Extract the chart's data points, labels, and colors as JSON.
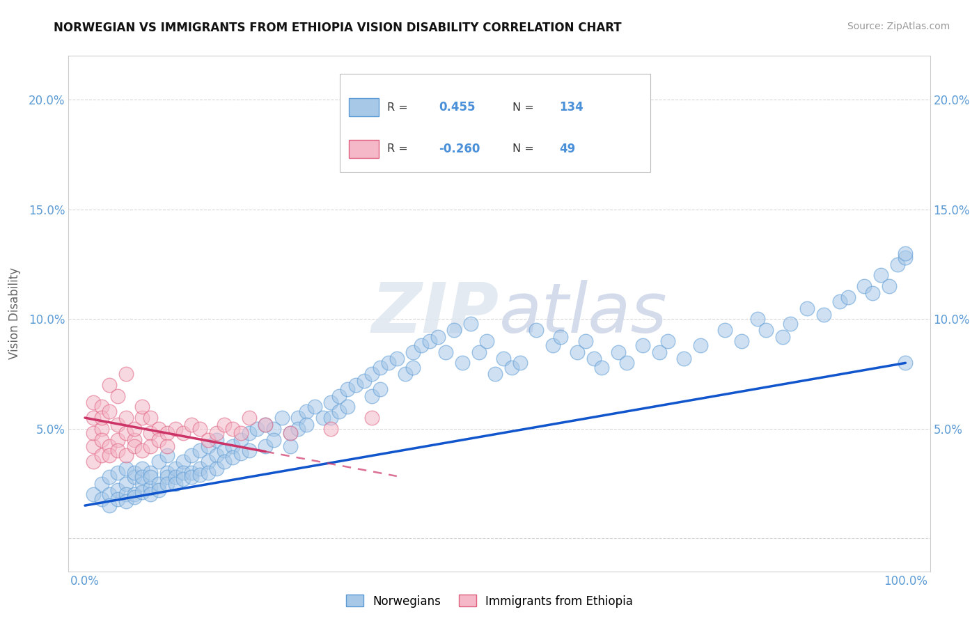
{
  "title": "NORWEGIAN VS IMMIGRANTS FROM ETHIOPIA VISION DISABILITY CORRELATION CHART",
  "source": "Source: ZipAtlas.com",
  "ylabel": "Vision Disability",
  "norwegian_R": 0.455,
  "norwegian_N": 134,
  "ethiopia_R": -0.26,
  "ethiopia_N": 49,
  "blue_scatter_face": "#a8c8e8",
  "blue_scatter_edge": "#5b9bd5",
  "pink_scatter_face": "#f4b8c8",
  "pink_scatter_edge": "#e06080",
  "blue_line_color": "#1155cc",
  "pink_line_color": "#cc3366",
  "background_color": "#ffffff",
  "grid_color": "#cccccc",
  "watermark": "ZIPatlas",
  "tick_color": "#5b9bd5",
  "norway_x": [
    1,
    2,
    2,
    3,
    3,
    3,
    4,
    4,
    4,
    5,
    5,
    5,
    5,
    6,
    6,
    6,
    6,
    7,
    7,
    7,
    7,
    8,
    8,
    8,
    8,
    9,
    9,
    9,
    10,
    10,
    10,
    10,
    11,
    11,
    11,
    12,
    12,
    12,
    13,
    13,
    13,
    14,
    14,
    14,
    15,
    15,
    15,
    16,
    16,
    16,
    17,
    17,
    18,
    18,
    19,
    19,
    20,
    20,
    21,
    22,
    22,
    23,
    23,
    24,
    25,
    25,
    26,
    26,
    27,
    27,
    28,
    29,
    30,
    30,
    31,
    31,
    32,
    32,
    33,
    34,
    35,
    35,
    36,
    36,
    37,
    38,
    39,
    40,
    40,
    41,
    42,
    43,
    44,
    45,
    46,
    47,
    48,
    49,
    50,
    51,
    52,
    53,
    55,
    57,
    58,
    60,
    61,
    62,
    63,
    65,
    66,
    68,
    70,
    71,
    73,
    75,
    78,
    80,
    82,
    83,
    85,
    86,
    88,
    90,
    92,
    93,
    95,
    96,
    97,
    98,
    99,
    100,
    100,
    100
  ],
  "norway_y": [
    2.0,
    1.8,
    2.5,
    2.0,
    2.8,
    1.5,
    2.2,
    3.0,
    1.8,
    2.5,
    2.0,
    3.2,
    1.7,
    2.8,
    2.0,
    3.0,
    1.9,
    2.5,
    3.2,
    2.1,
    2.8,
    3.0,
    2.3,
    2.8,
    2.0,
    3.5,
    2.5,
    2.2,
    3.0,
    2.8,
    2.5,
    3.8,
    3.2,
    2.8,
    2.5,
    3.5,
    3.0,
    2.7,
    3.8,
    3.0,
    2.8,
    4.0,
    3.2,
    2.9,
    4.2,
    3.5,
    3.0,
    4.5,
    3.8,
    3.2,
    4.0,
    3.5,
    4.2,
    3.7,
    4.5,
    3.9,
    4.8,
    4.0,
    5.0,
    5.2,
    4.2,
    5.0,
    4.5,
    5.5,
    4.8,
    4.2,
    5.5,
    5.0,
    5.8,
    5.2,
    6.0,
    5.5,
    6.2,
    5.5,
    6.5,
    5.8,
    6.8,
    6.0,
    7.0,
    7.2,
    7.5,
    6.5,
    7.8,
    6.8,
    8.0,
    8.2,
    7.5,
    8.5,
    7.8,
    8.8,
    9.0,
    9.2,
    8.5,
    9.5,
    8.0,
    9.8,
    8.5,
    9.0,
    7.5,
    8.2,
    7.8,
    8.0,
    9.5,
    8.8,
    9.2,
    8.5,
    9.0,
    8.2,
    7.8,
    8.5,
    8.0,
    8.8,
    8.5,
    9.0,
    8.2,
    8.8,
    9.5,
    9.0,
    10.0,
    9.5,
    9.2,
    9.8,
    10.5,
    10.2,
    10.8,
    11.0,
    11.5,
    11.2,
    12.0,
    11.5,
    12.5,
    12.8,
    13.0,
    8.0
  ],
  "ethiopia_x": [
    1,
    1,
    1,
    1,
    1,
    2,
    2,
    2,
    2,
    2,
    3,
    3,
    3,
    3,
    4,
    4,
    4,
    4,
    5,
    5,
    5,
    5,
    6,
    6,
    6,
    7,
    7,
    7,
    8,
    8,
    8,
    9,
    9,
    10,
    10,
    11,
    12,
    13,
    14,
    15,
    16,
    17,
    18,
    19,
    20,
    22,
    25,
    30,
    35
  ],
  "ethiopia_y": [
    3.5,
    4.2,
    5.5,
    6.2,
    4.8,
    3.8,
    5.0,
    4.5,
    6.0,
    5.5,
    4.2,
    5.8,
    3.8,
    7.0,
    4.5,
    5.2,
    4.0,
    6.5,
    4.8,
    5.5,
    3.8,
    7.5,
    4.5,
    5.0,
    4.2,
    5.5,
    4.0,
    6.0,
    4.8,
    5.5,
    4.2,
    5.0,
    4.5,
    4.8,
    4.2,
    5.0,
    4.8,
    5.2,
    5.0,
    4.5,
    4.8,
    5.2,
    5.0,
    4.8,
    5.5,
    5.2,
    4.8,
    5.0,
    5.5
  ]
}
